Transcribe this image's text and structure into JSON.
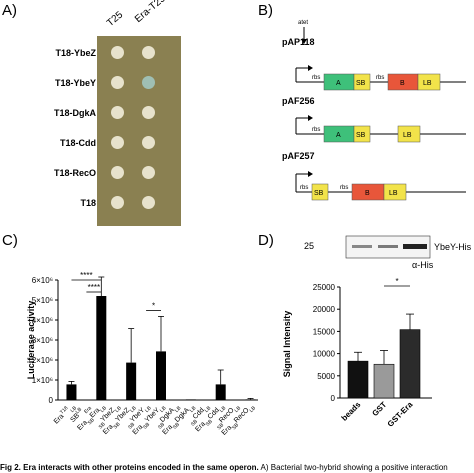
{
  "panels": {
    "a": "A)",
    "b": "B)",
    "c": "C)",
    "d": "D)"
  },
  "panel_a": {
    "columns": [
      "T25",
      "Era-T25"
    ],
    "rows": [
      "T18-YbeZ",
      "T18-YbeY",
      "T18-DgkA",
      "T18-Cdd",
      "T18-RecO",
      "T18"
    ],
    "positive_spot": {
      "row": 1,
      "col": 1
    },
    "plate_color": "#8a8051",
    "spot_color": "#e7e2cc",
    "blue_spot_color": "#9fbfb4"
  },
  "panel_b": {
    "constructs": [
      {
        "name": "pAP118",
        "promoter_label": "atet",
        "parts": [
          "rbs",
          "A",
          "SB",
          "rbs",
          "B",
          "LB"
        ]
      },
      {
        "name": "pAF256",
        "parts": [
          "rbs",
          "A",
          "SB",
          "LB"
        ]
      },
      {
        "name": "pAF257",
        "parts": [
          "rbs",
          "SB",
          "rbs",
          "B",
          "LB"
        ]
      }
    ],
    "colors": {
      "A": "#3ec07a",
      "B": "#e8563a",
      "SB": "#f2e34a",
      "LB": "#f2e34a"
    }
  },
  "chart_data": [
    {
      "type": "bar",
      "panel": "C",
      "ylabel": "Luciferase activity",
      "yticks": [
        "0",
        "1×10⁶",
        "2×10⁶",
        "3×10⁶",
        "4×10⁶",
        "5×10⁶",
        "6×10⁶"
      ],
      "ylim": [
        0,
        6000000
      ],
      "categories": [
        {
          "base": "Era",
          "sup": "T18",
          "sub": "LB"
        },
        {
          "base": "SB",
          "sub": "Era",
          "sup": "LB"
        },
        {
          "base": "Era",
          "sub": "SB",
          "mid": "Era",
          "tail": "LB"
        },
        {
          "pre": "SB",
          "base": "YbeZ",
          "sub": "LB"
        },
        {
          "base": "Era",
          "sub": "SB",
          "mid": "YbeZ",
          "tail": "LB"
        },
        {
          "pre": "SB",
          "base": "YbeY",
          "sub": "LB"
        },
        {
          "base": "Era",
          "sub": "SB",
          "mid": "YbeY",
          "tail": "LB"
        },
        {
          "pre": "SB",
          "base": "DgkA",
          "sub": "LB"
        },
        {
          "base": "Era",
          "sub": "SB",
          "mid": "DgkA",
          "tail": "LB"
        },
        {
          "pre": "SB",
          "base": "Cdd",
          "sub": "LB"
        },
        {
          "base": "Era",
          "sub": "SB",
          "mid": "Cdd",
          "tail": "LB"
        },
        {
          "pre": "SB",
          "base": "RecO",
          "sub": "LB"
        },
        {
          "base": "Era",
          "sub": "SB",
          "mid": "RecO",
          "tail": "LB"
        }
      ],
      "values": [
        780000,
        15000,
        5200000,
        20000,
        1870000,
        20000,
        2430000,
        15000,
        30000,
        10000,
        780000,
        10000,
        30000
      ],
      "errors": [
        150000,
        0,
        950000,
        0,
        1700000,
        0,
        1750000,
        0,
        0,
        0,
        720000,
        0,
        50000
      ],
      "significance": [
        {
          "from": 0,
          "to": 2,
          "label": "****"
        },
        {
          "from": 1,
          "to": 2,
          "label": "****"
        },
        {
          "from": 5,
          "to": 6,
          "label": "*"
        }
      ]
    },
    {
      "type": "bar",
      "panel": "D",
      "ylabel": "Signal Intensity",
      "yticks": [
        "0",
        "5000",
        "10000",
        "15000",
        "20000",
        "25000"
      ],
      "ylim": [
        0,
        25000
      ],
      "categories": [
        "beads",
        "GST",
        "GST-Era"
      ],
      "values": [
        8300,
        7600,
        15400
      ],
      "errors": [
        2000,
        3100,
        3500
      ],
      "colors": [
        "#111111",
        "#9a9a9a",
        "#2b2b2b"
      ],
      "significance": [
        {
          "from": 1,
          "to": 2,
          "label": "*"
        }
      ]
    }
  ],
  "blot": {
    "size_marker": "25",
    "band_label": "YbeY-His",
    "antibody": "α-His"
  },
  "caption": {
    "label": "Fig 2.",
    "title": "Era interacts with other proteins encoded in the same operon.",
    "text": "A) Bacterial two-hybrid showing a positive interaction"
  }
}
